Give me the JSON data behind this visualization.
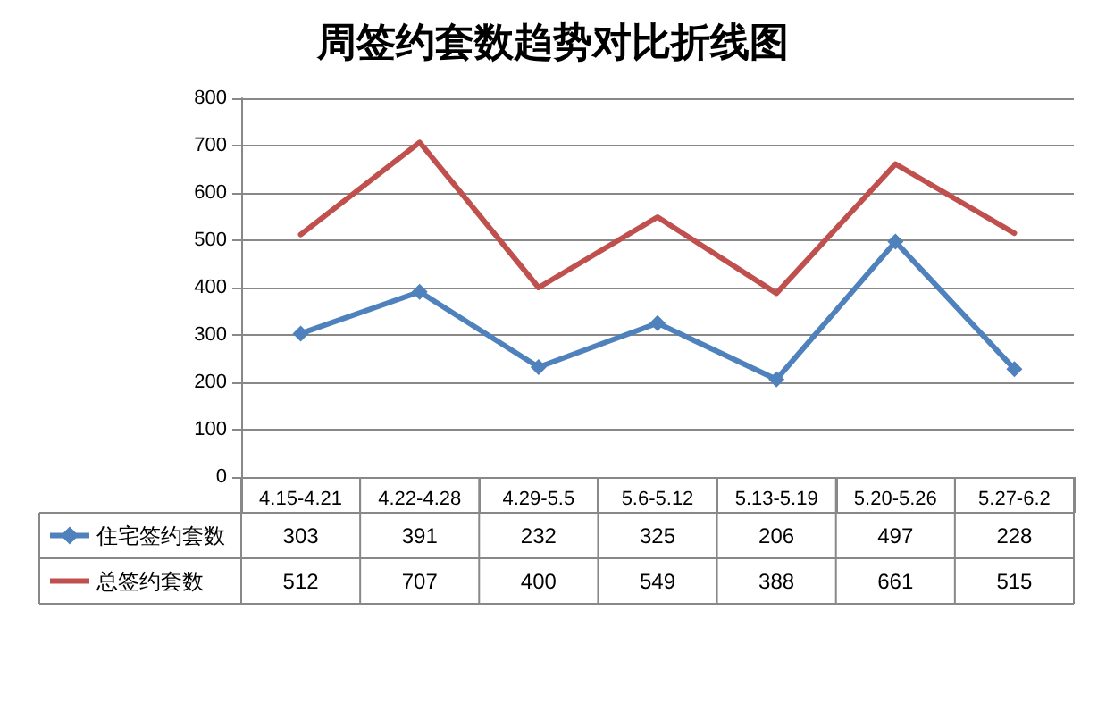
{
  "chart_data": {
    "type": "line",
    "title": "周签约套数趋势对比折线图",
    "categories": [
      "4.15-4.21",
      "4.22-4.28",
      "4.29-5.5",
      "5.6-5.12",
      "5.13-5.19",
      "5.20-5.26",
      "5.27-6.2"
    ],
    "series": [
      {
        "name": "住宅签约套数",
        "color": "#4f81bd",
        "marker": "diamond",
        "values": [
          303,
          391,
          232,
          325,
          206,
          497,
          228
        ]
      },
      {
        "name": "总签约套数",
        "color": "#c0504d",
        "marker": "none",
        "values": [
          512,
          707,
          400,
          549,
          388,
          661,
          515
        ]
      }
    ],
    "ylim": [
      0,
      800
    ],
    "yticks": [
      0,
      100,
      200,
      300,
      400,
      500,
      600,
      700,
      800
    ],
    "grid": "y",
    "legend": "bottom left",
    "data_labels": true
  }
}
